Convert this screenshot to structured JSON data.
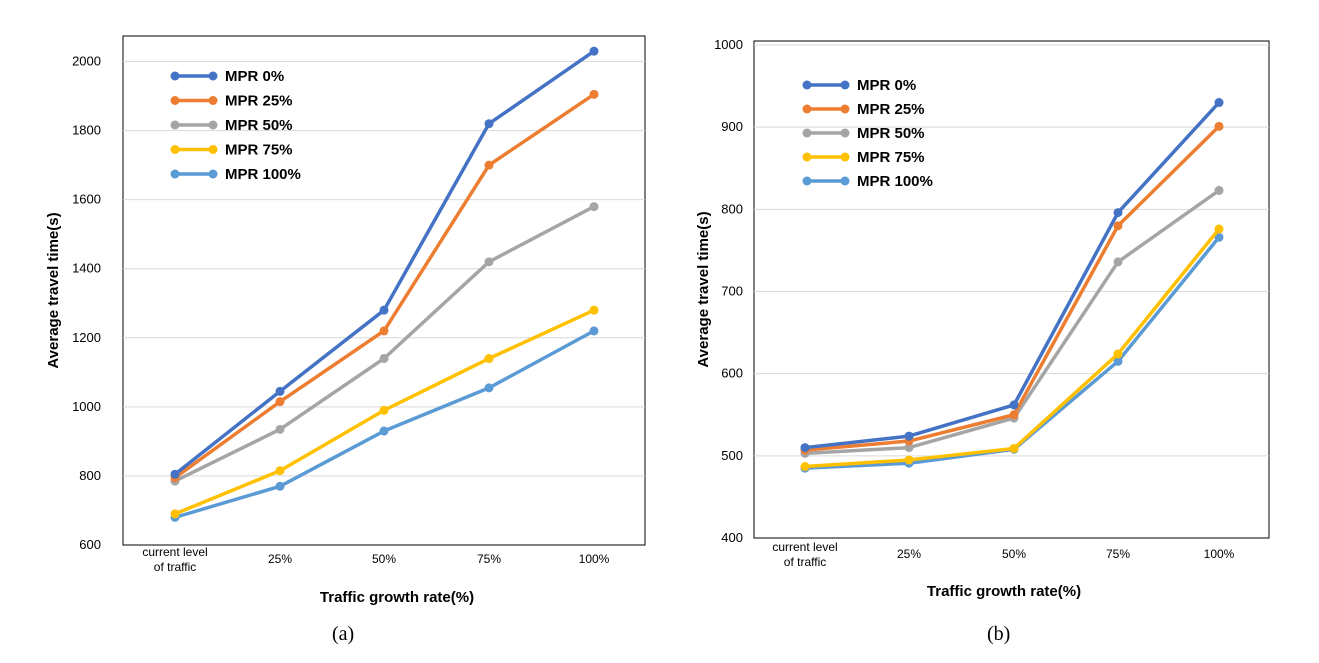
{
  "captions": [
    "(a)",
    "(b)"
  ],
  "colors": {
    "MPR 0%": "#4472C4",
    "MPR 25%": "#ED7D31",
    "MPR 50%": "#A5A5A5",
    "MPR 75%": "#FFC000",
    "MPR 100%": "#5B9BD5"
  },
  "chart_data": [
    {
      "type": "line",
      "caption": "(a)",
      "categories": [
        [
          "current level",
          "of traffic"
        ],
        [
          "25%"
        ],
        [
          "50%"
        ],
        [
          "75%"
        ],
        [
          "100%"
        ]
      ],
      "xlabel": "Traffic growth rate(%)",
      "ylabel": "Average travel time(s)",
      "ylim": [
        600,
        2100
      ],
      "yticks": [
        600,
        800,
        1000,
        1200,
        1400,
        1600,
        1800,
        2000
      ],
      "grid": true,
      "legend": "top-left",
      "series": [
        {
          "name": "MPR 0%",
          "values": [
            805,
            1045,
            1280,
            1820,
            2030
          ]
        },
        {
          "name": "MPR 25%",
          "values": [
            795,
            1015,
            1220,
            1700,
            1905
          ]
        },
        {
          "name": "MPR 50%",
          "values": [
            785,
            935,
            1140,
            1420,
            1580
          ]
        },
        {
          "name": "MPR 75%",
          "values": [
            690,
            815,
            990,
            1140,
            1280
          ]
        },
        {
          "name": "MPR 100%",
          "values": [
            680,
            770,
            930,
            1055,
            1220
          ]
        }
      ]
    },
    {
      "type": "line",
      "caption": "(b)",
      "categories": [
        [
          "current level",
          "of traffic"
        ],
        [
          "25%"
        ],
        [
          "50%"
        ],
        [
          "75%"
        ],
        [
          "100%"
        ]
      ],
      "xlabel": "Traffic growth rate(%)",
      "ylabel": "Average travel time(s)",
      "ylim": [
        400,
        1000
      ],
      "yticks": [
        400,
        500,
        600,
        700,
        800,
        900,
        1000
      ],
      "grid": true,
      "legend": "top-left",
      "series": [
        {
          "name": "MPR 0%",
          "values": [
            510,
            524,
            562,
            796,
            930
          ]
        },
        {
          "name": "MPR 25%",
          "values": [
            507,
            518,
            550,
            780,
            901
          ]
        },
        {
          "name": "MPR 50%",
          "values": [
            503,
            510,
            546,
            736,
            823
          ]
        },
        {
          "name": "MPR 75%",
          "values": [
            487,
            495,
            509,
            624,
            776
          ]
        },
        {
          "name": "MPR 100%",
          "values": [
            485,
            491,
            508,
            615,
            766
          ]
        }
      ]
    }
  ]
}
